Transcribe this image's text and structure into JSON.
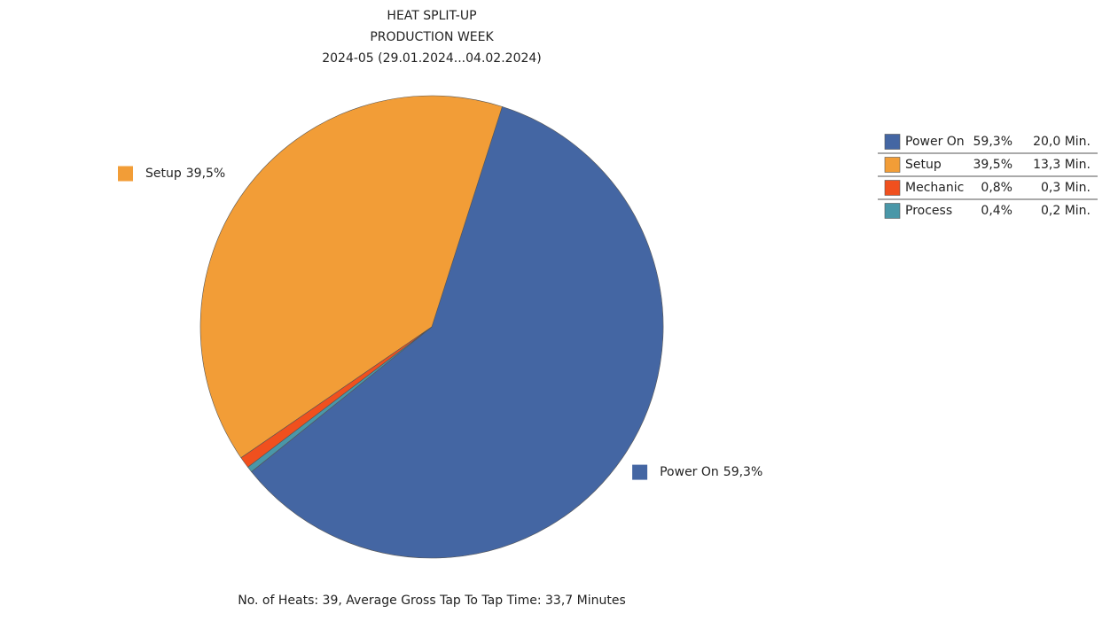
{
  "chart_data": {
    "type": "pie",
    "title": [
      "HEAT SPLIT-UP",
      "PRODUCTION WEEK",
      "2024-05 (29.01.2024...04.02.2024)"
    ],
    "categories": [
      "Power On",
      "Setup",
      "Mechanic",
      "Process"
    ],
    "values": [
      59.3,
      39.5,
      0.8,
      0.4
    ],
    "value_labels": [
      "59,3%",
      "39,5%",
      "0,8%",
      "0,4%"
    ],
    "minutes": [
      20.0,
      13.3,
      0.3,
      0.2
    ],
    "minutes_labels": [
      "20,0 Min.",
      "13,3 Min.",
      "0,3 Min.",
      "0,2 Min."
    ],
    "colors": [
      "#4466a3",
      "#f29d37",
      "#f0501e",
      "#4a97a8"
    ],
    "legend": "right",
    "footer": "No. of Heats: 39, Average Gross Tap To Tap Time: 33,7 Minutes"
  }
}
